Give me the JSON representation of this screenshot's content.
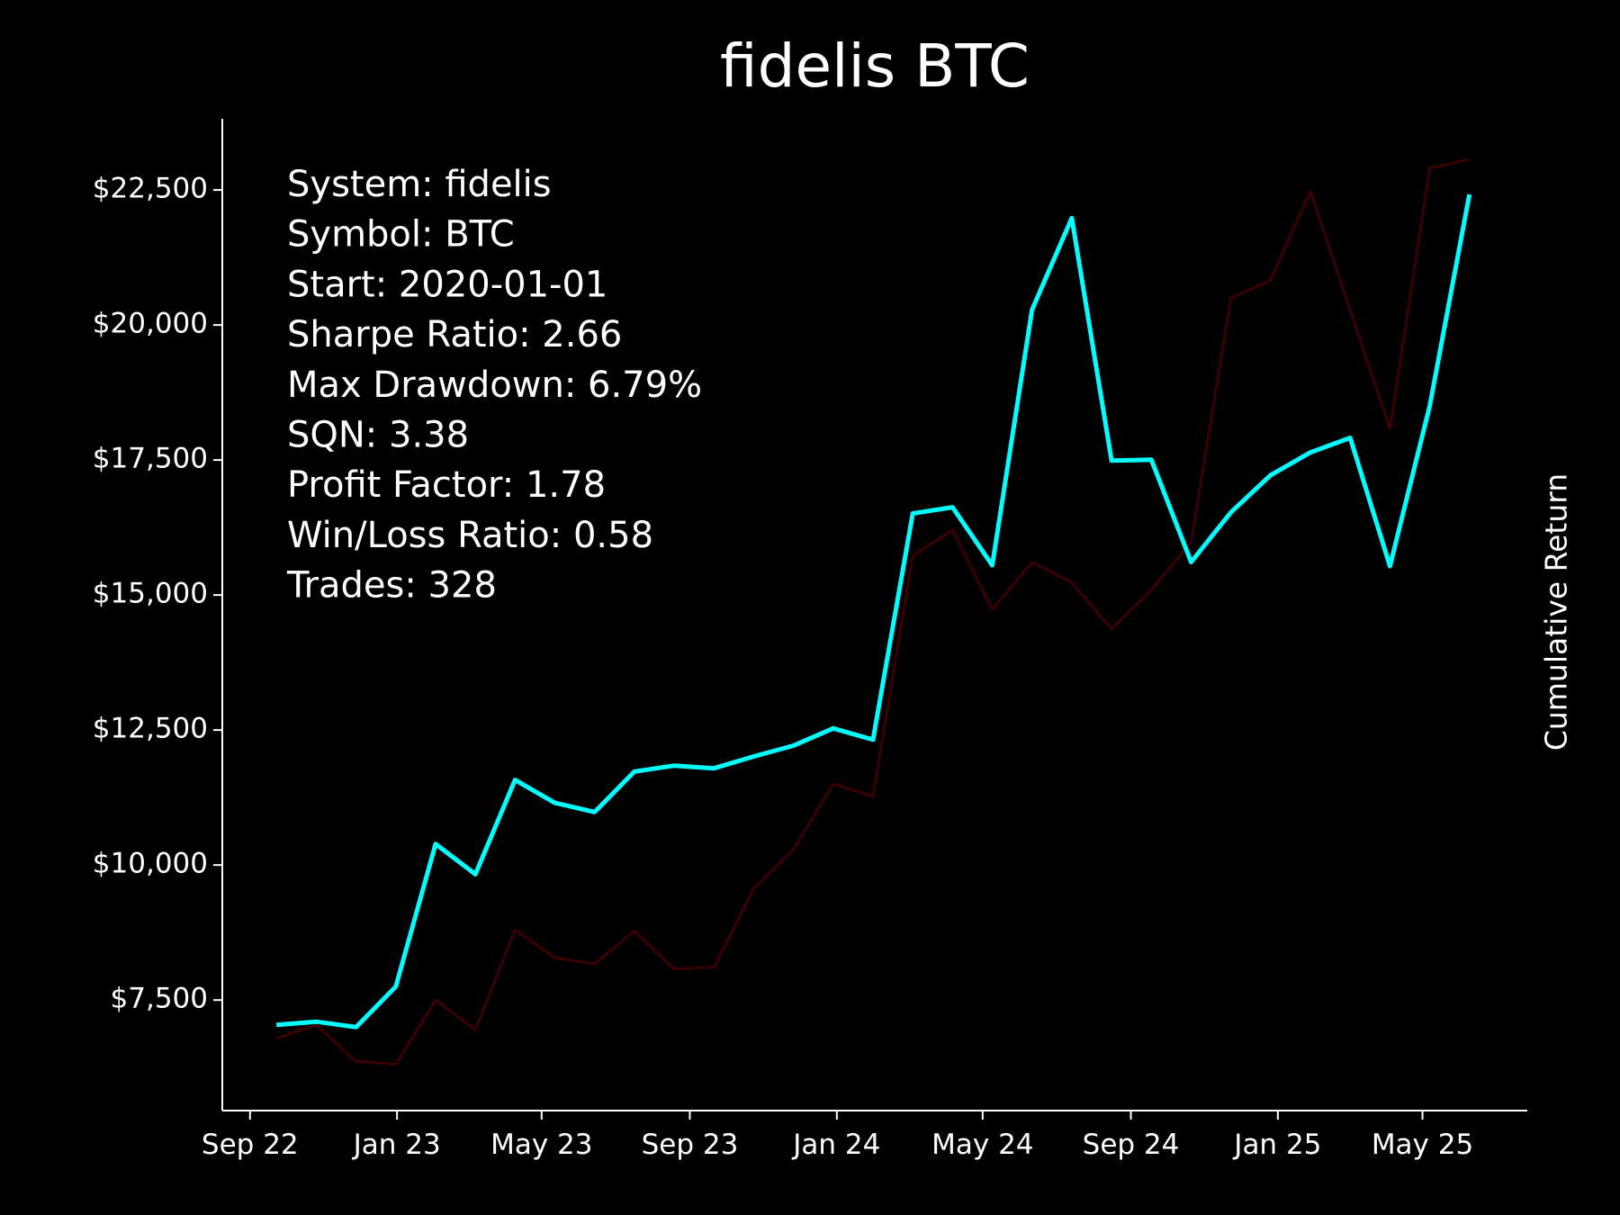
{
  "chart_data": {
    "type": "line",
    "title": "fidelis BTC",
    "y2_label": "Cumulative Return",
    "annotation_lines": [
      "System: fidelis",
      "Symbol: BTC",
      "Start: 2020-01-01",
      "Sharpe Ratio: 2.66",
      "Max Drawdown: 6.79%",
      "SQN: 3.38",
      "Profit Factor: 1.78",
      "Win/Loss Ratio: 0.58",
      "Trades: 328"
    ],
    "x": [
      "2022-09-23",
      "2022-10-26",
      "2022-11-28",
      "2022-12-31",
      "2023-02-02",
      "2023-03-07",
      "2023-04-09",
      "2023-05-12",
      "2023-06-14",
      "2023-07-17",
      "2023-08-19",
      "2023-09-21",
      "2023-10-24",
      "2023-11-26",
      "2023-12-29",
      "2024-01-31",
      "2024-03-04",
      "2024-04-06",
      "2024-05-09",
      "2024-06-11",
      "2024-07-14",
      "2024-08-16",
      "2024-09-18",
      "2024-10-21",
      "2024-11-23",
      "2024-12-26",
      "2025-01-28",
      "2025-03-02",
      "2025-04-04",
      "2025-05-07",
      "2025-06-09"
    ],
    "series": [
      {
        "color": "#3d0000",
        "width": 3,
        "values": [
          6790,
          7040,
          6370,
          6310,
          7500,
          6945,
          8800,
          8285,
          8170,
          8780,
          8075,
          8110,
          9565,
          10295,
          11500,
          11270,
          15725,
          16205,
          14730,
          15610,
          15230,
          14370,
          15095,
          15975,
          20490,
          20835,
          22480,
          20280,
          18080,
          22900,
          23070
        ]
      },
      {
        "color": "#00ffff",
        "width": 5,
        "values": [
          7040,
          7100,
          7000,
          7750,
          10390,
          9830,
          11575,
          11150,
          10980,
          11730,
          11840,
          11790,
          12010,
          12210,
          12530,
          12320,
          16510,
          16625,
          15550,
          20280,
          21980,
          17490,
          17505,
          15610,
          16530,
          17220,
          17640,
          17910,
          15535,
          18500,
          22420
        ]
      }
    ],
    "xlim": [
      "2022-08-09",
      "2025-07-27"
    ],
    "xticks": [
      {
        "value": "2022-09-01",
        "label": "Sep 22"
      },
      {
        "value": "2023-01-01",
        "label": "Jan 23"
      },
      {
        "value": "2023-05-01",
        "label": "May 23"
      },
      {
        "value": "2023-09-01",
        "label": "Sep 23"
      },
      {
        "value": "2024-01-01",
        "label": "Jan 24"
      },
      {
        "value": "2024-05-01",
        "label": "May 24"
      },
      {
        "value": "2024-09-01",
        "label": "Sep 24"
      },
      {
        "value": "2025-01-01",
        "label": "Jan 25"
      },
      {
        "value": "2025-05-01",
        "label": "May 25"
      }
    ],
    "ylim": [
      5453,
      23818
    ],
    "yticks": [
      {
        "value": 7500,
        "label": "$7,500"
      },
      {
        "value": 10000,
        "label": "$10,000"
      },
      {
        "value": 12500,
        "label": "$12,500"
      },
      {
        "value": 15000,
        "label": "$15,000"
      },
      {
        "value": 17500,
        "label": "$17,500"
      },
      {
        "value": 20000,
        "label": "$20,000"
      },
      {
        "value": 22500,
        "label": "$22,500"
      }
    ]
  }
}
